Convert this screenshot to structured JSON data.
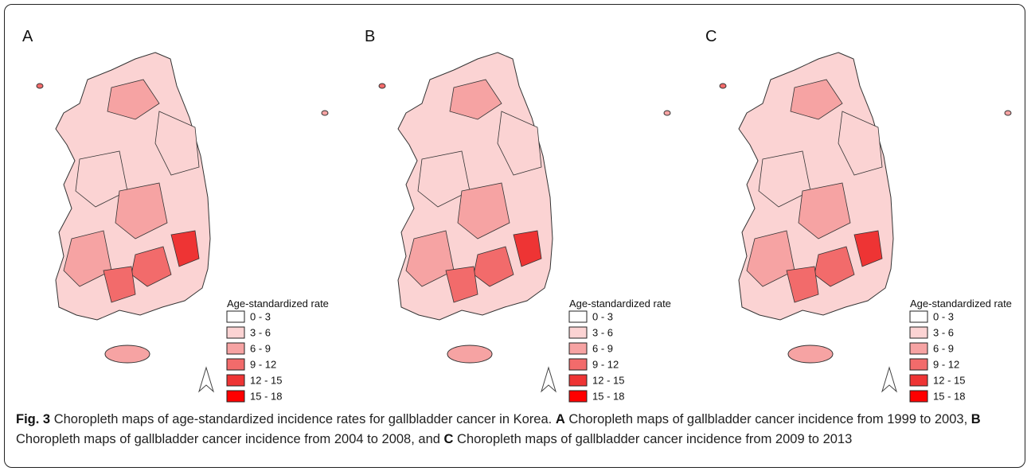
{
  "panels": [
    {
      "label": "A"
    },
    {
      "label": "B"
    },
    {
      "label": "C"
    }
  ],
  "legend": {
    "title": "Age-standardized rate",
    "items": [
      {
        "label": "0 - 3",
        "color": "#ffffff"
      },
      {
        "label": "3 - 6",
        "color": "#fbd3d3"
      },
      {
        "label": "6 - 9",
        "color": "#f6a3a3"
      },
      {
        "label": "9 - 12",
        "color": "#f26b6b"
      },
      {
        "label": "12 - 15",
        "color": "#ee3434"
      },
      {
        "label": "15 - 18",
        "color": "#ff0000"
      }
    ]
  },
  "caption": [
    {
      "text": "Fig. 3",
      "bold": true
    },
    {
      "text": "Choropleth maps of age-standardized incidence rates for gallbladder cancer in Korea.",
      "bold": false
    },
    {
      "text": "A",
      "bold": true
    },
    {
      "text": "Choropleth maps of gallbladder cancer incidence from 1999 to 2003,",
      "bold": false
    },
    {
      "text": "B",
      "bold": true
    },
    {
      "text": "Choropleth maps of gallbladder cancer incidence from 2004 to 2008, and",
      "bold": false
    },
    {
      "text": "C",
      "bold": true
    },
    {
      "text": "Choropleth maps of gallbladder cancer incidence from 2009 to 2013",
      "bold": false
    }
  ]
}
